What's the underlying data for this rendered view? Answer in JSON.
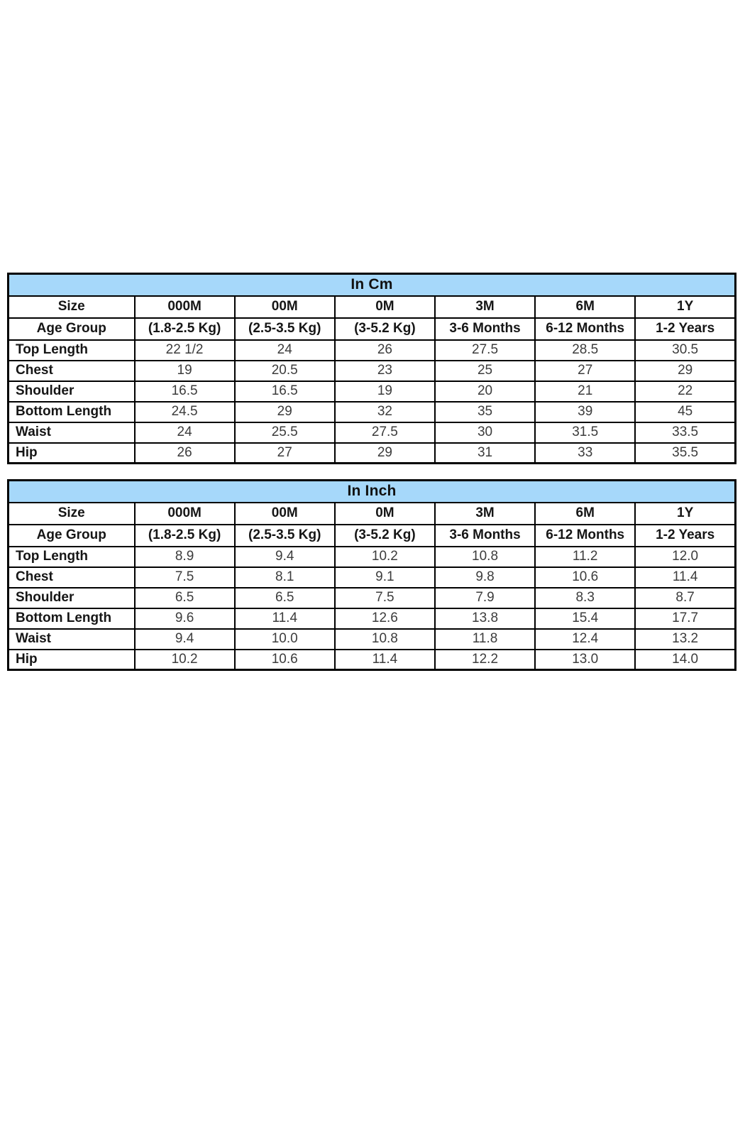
{
  "page": {
    "background_color": "#ffffff",
    "border_color": "#000000",
    "header_fill_color": "#A6D8FA",
    "label_text_color": "#161616",
    "value_text_color": "#3c3c3c"
  },
  "tables": [
    {
      "id": "cm",
      "title": "In Cm",
      "title_bg": "#A6D8FA",
      "size_row": {
        "label": "Size",
        "cells": [
          "000M",
          "00M",
          "0M",
          "3M",
          "6M",
          "1Y"
        ]
      },
      "age_row": {
        "label": "Age Group",
        "cells": [
          "(1.8-2.5 Kg)",
          "(2.5-3.5 Kg)",
          "(3-5.2 Kg)",
          "3-6 Months",
          "6-12 Months",
          "1-2 Years"
        ]
      },
      "measurement_rows": [
        {
          "label": "Top Length",
          "cells": [
            "22 1/2",
            "24",
            "26",
            "27.5",
            "28.5",
            "30.5"
          ]
        },
        {
          "label": "Chest",
          "cells": [
            "19",
            "20.5",
            "23",
            "25",
            "27",
            "29"
          ]
        },
        {
          "label": "Shoulder",
          "cells": [
            "16.5",
            "16.5",
            "19",
            "20",
            "21",
            "22"
          ]
        },
        {
          "label": "Bottom Length",
          "cells": [
            "24.5",
            "29",
            "32",
            "35",
            "39",
            "45"
          ]
        },
        {
          "label": "Waist",
          "cells": [
            "24",
            "25.5",
            "27.5",
            "30",
            "31.5",
            "33.5"
          ]
        },
        {
          "label": "Hip",
          "cells": [
            "26",
            "27",
            "29",
            "31",
            "33",
            "35.5"
          ]
        }
      ]
    },
    {
      "id": "inch",
      "title": "In Inch",
      "title_bg": "#A6D8FA",
      "size_row": {
        "label": "Size",
        "cells": [
          "000M",
          "00M",
          "0M",
          "3M",
          "6M",
          "1Y"
        ]
      },
      "age_row": {
        "label": "Age Group",
        "cells": [
          "(1.8-2.5 Kg)",
          "(2.5-3.5 Kg)",
          "(3-5.2 Kg)",
          "3-6 Months",
          "6-12 Months",
          "1-2 Years"
        ]
      },
      "measurement_rows": [
        {
          "label": "Top Length",
          "cells": [
            "8.9",
            "9.4",
            "10.2",
            "10.8",
            "11.2",
            "12.0"
          ]
        },
        {
          "label": "Chest",
          "cells": [
            "7.5",
            "8.1",
            "9.1",
            "9.8",
            "10.6",
            "11.4"
          ]
        },
        {
          "label": "Shoulder",
          "cells": [
            "6.5",
            "6.5",
            "7.5",
            "7.9",
            "8.3",
            "8.7"
          ]
        },
        {
          "label": "Bottom Length",
          "cells": [
            "9.6",
            "11.4",
            "12.6",
            "13.8",
            "15.4",
            "17.7"
          ]
        },
        {
          "label": "Waist",
          "cells": [
            "9.4",
            "10.0",
            "10.8",
            "11.8",
            "12.4",
            "13.2"
          ]
        },
        {
          "label": "Hip",
          "cells": [
            "10.2",
            "10.6",
            "11.4",
            "12.2",
            "13.0",
            "14.0"
          ]
        }
      ]
    }
  ]
}
